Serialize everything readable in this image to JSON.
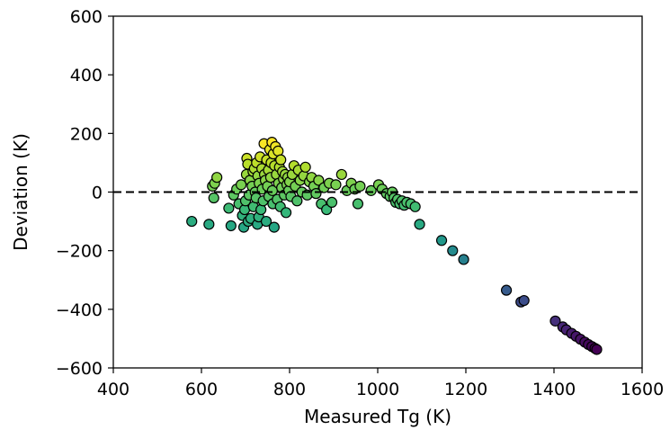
{
  "chart_data": {
    "type": "scatter",
    "xlabel": "Measured Tg (K)",
    "ylabel": "Deviation (K)",
    "xlim": [
      400,
      1600
    ],
    "ylim": [
      -600,
      600
    ],
    "x_ticks": [
      400,
      600,
      800,
      1000,
      1200,
      1400,
      1600
    ],
    "y_ticks": [
      -600,
      -400,
      -200,
      0,
      200,
      400,
      600
    ],
    "x_tick_labels": [
      "400",
      "600",
      "800",
      "1000",
      "1200",
      "1400",
      "1600"
    ],
    "y_tick_labels": [
      "−600",
      "−400",
      "−200",
      "0",
      "200",
      "400",
      "600"
    ],
    "reference_line": {
      "y": 0,
      "style": "dashed",
      "color": "#000000"
    },
    "colormap": "viridis",
    "color_encoding": "deviation",
    "marker": {
      "shape": "circle",
      "edge_color": "#000000"
    },
    "grid": false,
    "legend": "none",
    "points": [
      [
        578,
        -100
      ],
      [
        617,
        -110
      ],
      [
        625,
        20
      ],
      [
        628,
        -20
      ],
      [
        630,
        30
      ],
      [
        635,
        50
      ],
      [
        662,
        -55
      ],
      [
        667,
        -115
      ],
      [
        673,
        -10
      ],
      [
        680,
        10
      ],
      [
        685,
        -40
      ],
      [
        690,
        25
      ],
      [
        693,
        -80
      ],
      [
        696,
        -120
      ],
      [
        698,
        -60
      ],
      [
        700,
        -30
      ],
      [
        702,
        60
      ],
      [
        703,
        115
      ],
      [
        705,
        95
      ],
      [
        706,
        -100
      ],
      [
        708,
        -10
      ],
      [
        710,
        40
      ],
      [
        712,
        -90
      ],
      [
        715,
        20
      ],
      [
        717,
        70
      ],
      [
        718,
        -50
      ],
      [
        720,
        80
      ],
      [
        722,
        0
      ],
      [
        724,
        -20
      ],
      [
        725,
        100
      ],
      [
        727,
        -110
      ],
      [
        728,
        55
      ],
      [
        730,
        -85
      ],
      [
        731,
        30
      ],
      [
        733,
        120
      ],
      [
        735,
        -60
      ],
      [
        737,
        80
      ],
      [
        738,
        10
      ],
      [
        740,
        -30
      ],
      [
        742,
        165
      ],
      [
        743,
        60
      ],
      [
        745,
        40
      ],
      [
        747,
        -100
      ],
      [
        748,
        110
      ],
      [
        750,
        20
      ],
      [
        752,
        75
      ],
      [
        753,
        -15
      ],
      [
        755,
        145
      ],
      [
        757,
        50
      ],
      [
        758,
        100
      ],
      [
        760,
        170
      ],
      [
        761,
        5
      ],
      [
        762,
        -40
      ],
      [
        763,
        130
      ],
      [
        765,
        -120
      ],
      [
        766,
        90
      ],
      [
        768,
        155
      ],
      [
        770,
        60
      ],
      [
        772,
        -25
      ],
      [
        774,
        140
      ],
      [
        775,
        30
      ],
      [
        777,
        85
      ],
      [
        779,
        -50
      ],
      [
        780,
        110
      ],
      [
        782,
        15
      ],
      [
        784,
        70
      ],
      [
        786,
        45
      ],
      [
        788,
        -10
      ],
      [
        790,
        60
      ],
      [
        792,
        -70
      ],
      [
        794,
        25
      ],
      [
        796,
        50
      ],
      [
        798,
        5
      ],
      [
        800,
        35
      ],
      [
        803,
        -15
      ],
      [
        806,
        60
      ],
      [
        810,
        90
      ],
      [
        813,
        20
      ],
      [
        817,
        -30
      ],
      [
        820,
        75
      ],
      [
        824,
        40
      ],
      [
        828,
        0
      ],
      [
        832,
        55
      ],
      [
        836,
        85
      ],
      [
        840,
        -10
      ],
      [
        845,
        35
      ],
      [
        850,
        50
      ],
      [
        855,
        20
      ],
      [
        860,
        -5
      ],
      [
        866,
        40
      ],
      [
        872,
        -40
      ],
      [
        878,
        15
      ],
      [
        884,
        -60
      ],
      [
        890,
        30
      ],
      [
        896,
        -35
      ],
      [
        905,
        25
      ],
      [
        918,
        60
      ],
      [
        930,
        5
      ],
      [
        940,
        30
      ],
      [
        948,
        10
      ],
      [
        955,
        -40
      ],
      [
        960,
        20
      ],
      [
        985,
        5
      ],
      [
        1002,
        25
      ],
      [
        1010,
        10
      ],
      [
        1020,
        -5
      ],
      [
        1028,
        -15
      ],
      [
        1033,
        0
      ],
      [
        1037,
        -20
      ],
      [
        1041,
        -35
      ],
      [
        1045,
        -25
      ],
      [
        1050,
        -40
      ],
      [
        1055,
        -30
      ],
      [
        1060,
        -45
      ],
      [
        1066,
        -35
      ],
      [
        1075,
        -40
      ],
      [
        1085,
        -50
      ],
      [
        1095,
        -110
      ],
      [
        1145,
        -165
      ],
      [
        1170,
        -200
      ],
      [
        1195,
        -230
      ],
      [
        1292,
        -335
      ],
      [
        1325,
        -375
      ],
      [
        1332,
        -370
      ],
      [
        1403,
        -440
      ],
      [
        1420,
        -460
      ],
      [
        1428,
        -470
      ],
      [
        1440,
        -482
      ],
      [
        1450,
        -492
      ],
      [
        1460,
        -502
      ],
      [
        1470,
        -512
      ],
      [
        1478,
        -520
      ],
      [
        1486,
        -527
      ],
      [
        1493,
        -533
      ],
      [
        1497,
        -537
      ]
    ]
  }
}
